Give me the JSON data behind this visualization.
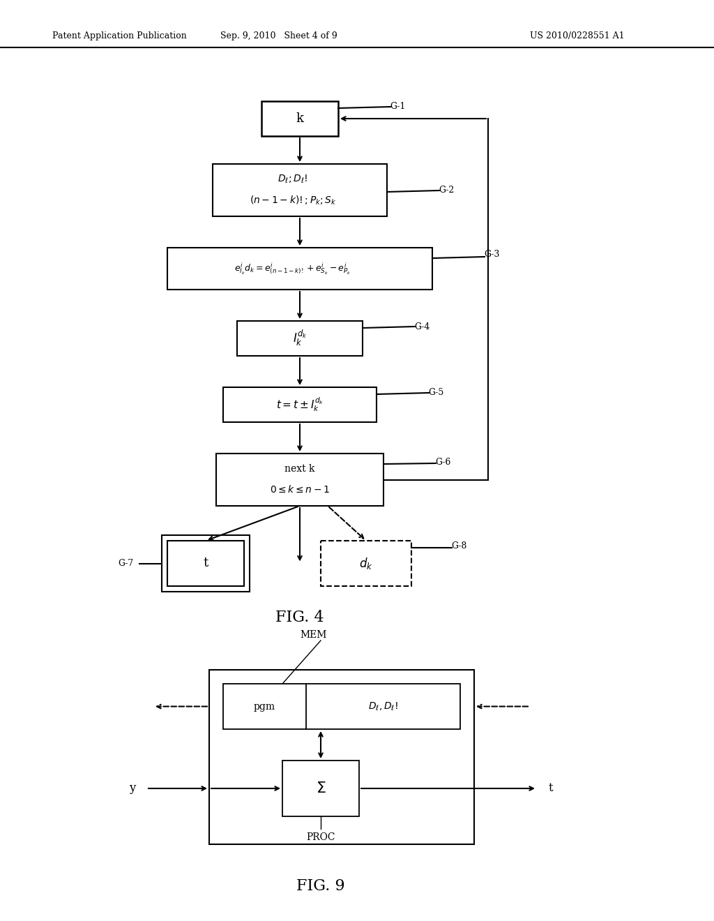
{
  "header_left": "Patent Application Publication",
  "header_mid": "Sep. 9, 2010   Sheet 4 of 9",
  "header_right": "US 2010/0228551 A1",
  "fig4_label": "FIG. 4",
  "fig9_label": "FIG. 9",
  "background": "#ffffff"
}
